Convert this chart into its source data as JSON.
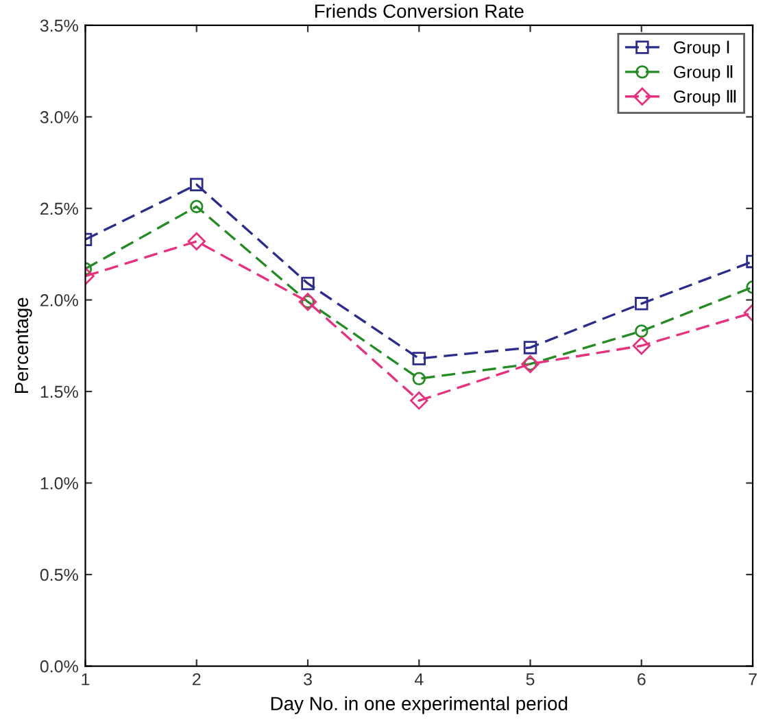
{
  "chart_data": {
    "type": "line",
    "title": "Friends Conversion Rate",
    "xlabel": "Day No. in one experimental period",
    "ylabel": "Percentage",
    "x": [
      1,
      2,
      3,
      4,
      5,
      6,
      7
    ],
    "series": [
      {
        "name": "Group Ⅰ",
        "color": "#2b2b8c",
        "marker": "square",
        "values": [
          2.33,
          2.63,
          2.09,
          1.68,
          1.74,
          1.98,
          2.21
        ]
      },
      {
        "name": "Group Ⅱ",
        "color": "#228b22",
        "marker": "circle",
        "values": [
          2.17,
          2.51,
          1.99,
          1.57,
          1.65,
          1.83,
          2.07
        ]
      },
      {
        "name": "Group Ⅲ",
        "color": "#e8307e",
        "marker": "diamond",
        "values": [
          2.13,
          2.32,
          1.99,
          1.45,
          1.65,
          1.75,
          1.93
        ]
      }
    ],
    "xlim": [
      1,
      7
    ],
    "xticks": [
      1,
      2,
      3,
      4,
      5,
      6,
      7
    ],
    "ylim": [
      0,
      3.5
    ],
    "yticks": [
      {
        "value": 0,
        "label": "0.0%"
      },
      {
        "value": 0.5,
        "label": "0.5%"
      },
      {
        "value": 1,
        "label": "1.0%"
      },
      {
        "value": 1.5,
        "label": "1.5%"
      },
      {
        "value": 2,
        "label": "2.0%"
      },
      {
        "value": 2.5,
        "label": "2.5%"
      },
      {
        "value": 3,
        "label": "3.0%"
      },
      {
        "value": 3.5,
        "label": "3.5%"
      }
    ],
    "grid": false,
    "legend": "top right",
    "line_style": "dashed"
  }
}
